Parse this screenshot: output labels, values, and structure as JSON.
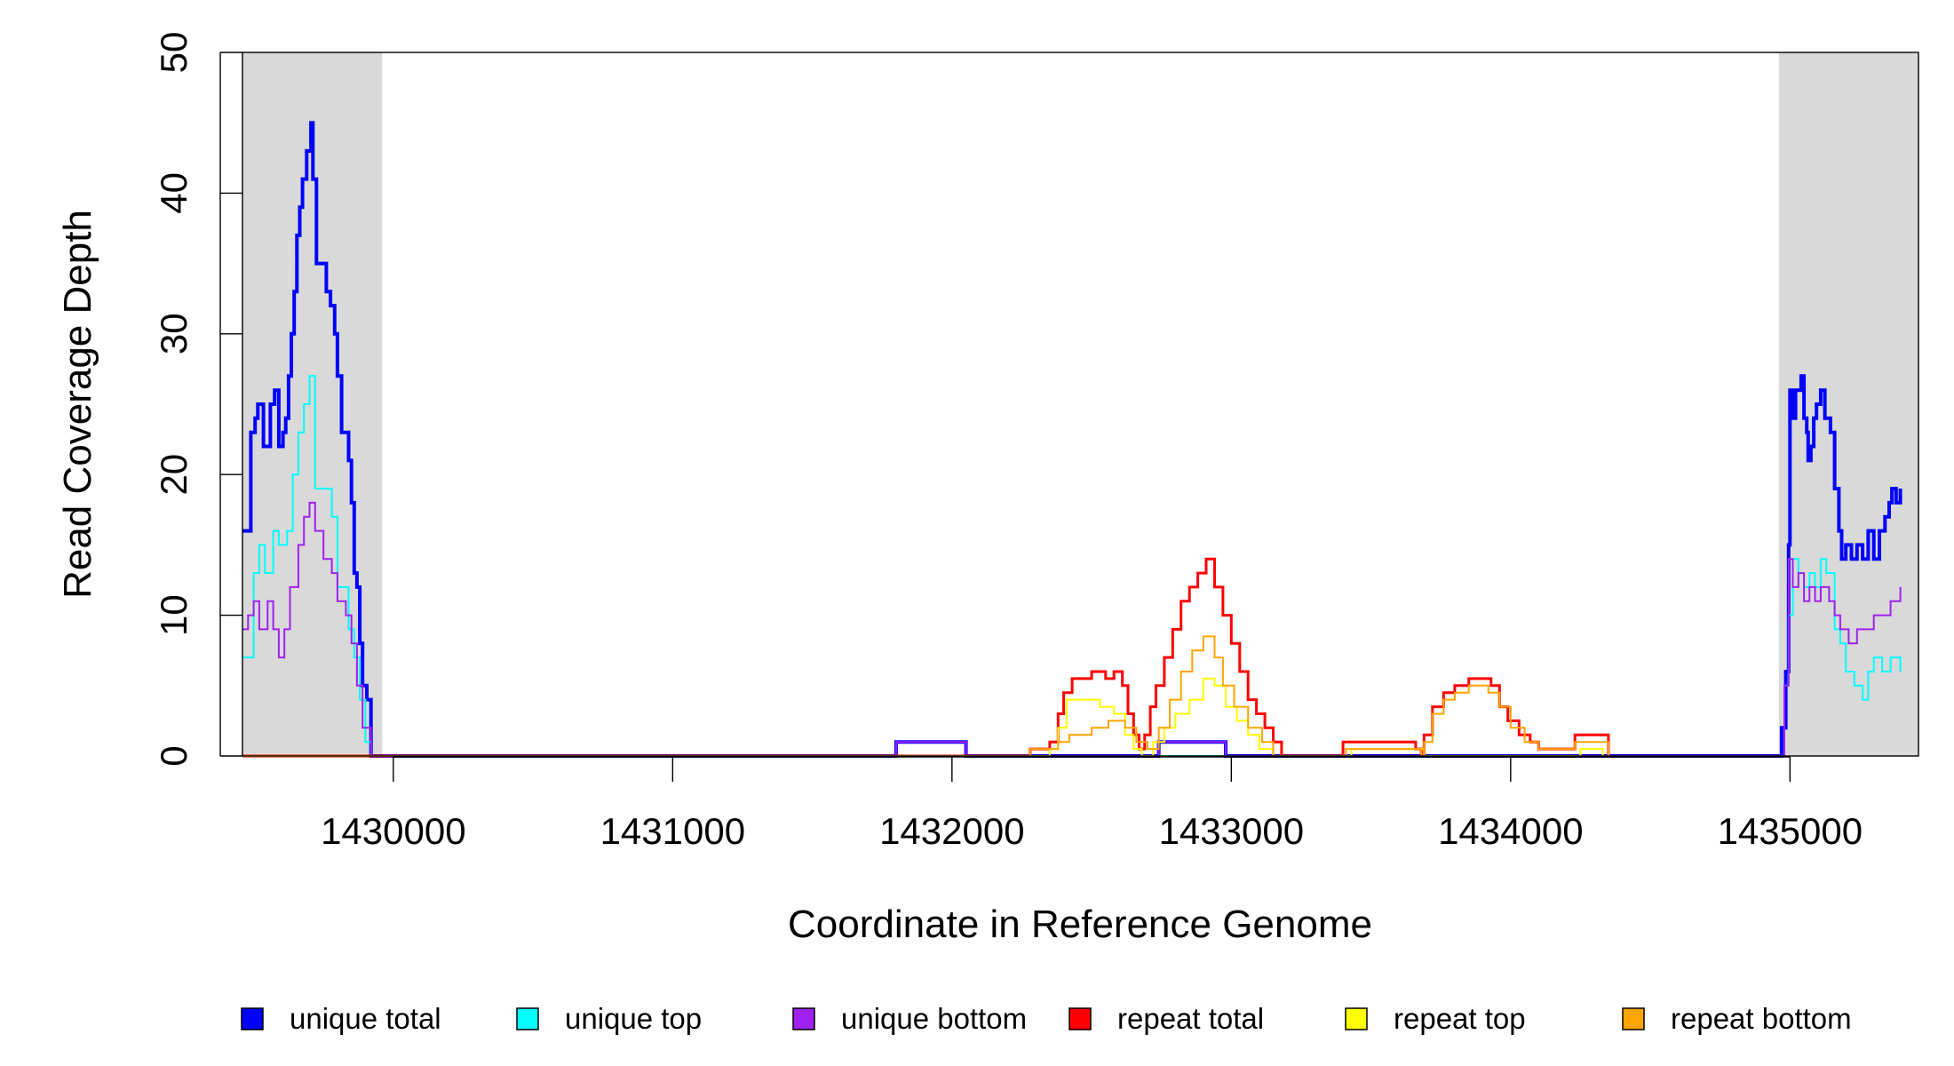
{
  "chart_data": {
    "type": "line",
    "xlabel": "Coordinate in Reference Genome",
    "ylabel": "Read Coverage Depth",
    "xlim": [
      1429460,
      1435460
    ],
    "ylim": [
      0,
      50
    ],
    "x_ticks": [
      1430000,
      1431000,
      1432000,
      1433000,
      1434000,
      1435000
    ],
    "y_ticks": [
      0,
      10,
      20,
      30,
      40,
      50
    ],
    "shaded_regions": [
      [
        1429460,
        1429960
      ],
      [
        1434960,
        1435460
      ]
    ],
    "shade_color": "#d9d9d9",
    "series": [
      {
        "name": "unique total",
        "color": "#0000ff",
        "width": 4,
        "points": [
          [
            1429460,
            16
          ],
          [
            1429490,
            23
          ],
          [
            1429505,
            24
          ],
          [
            1429515,
            25
          ],
          [
            1429535,
            22
          ],
          [
            1429560,
            25
          ],
          [
            1429575,
            26
          ],
          [
            1429590,
            22
          ],
          [
            1429605,
            23
          ],
          [
            1429615,
            24
          ],
          [
            1429625,
            27
          ],
          [
            1429635,
            30
          ],
          [
            1429645,
            33
          ],
          [
            1429655,
            37
          ],
          [
            1429665,
            39
          ],
          [
            1429675,
            41
          ],
          [
            1429690,
            43
          ],
          [
            1429705,
            45
          ],
          [
            1429712,
            41
          ],
          [
            1429725,
            35
          ],
          [
            1429745,
            35
          ],
          [
            1429760,
            33
          ],
          [
            1429775,
            32
          ],
          [
            1429790,
            30
          ],
          [
            1429800,
            27
          ],
          [
            1429815,
            23
          ],
          [
            1429840,
            21
          ],
          [
            1429850,
            18
          ],
          [
            1429860,
            13
          ],
          [
            1429870,
            12
          ],
          [
            1429880,
            8
          ],
          [
            1429890,
            5
          ],
          [
            1429905,
            4
          ],
          [
            1429920,
            0
          ],
          [
            1429960,
            0
          ],
          [
            1431800,
            0
          ],
          [
            1431800,
            1
          ],
          [
            1432050,
            1
          ],
          [
            1432050,
            0
          ],
          [
            1432740,
            0
          ],
          [
            1432740,
            1
          ],
          [
            1432980,
            1
          ],
          [
            1432980,
            0
          ],
          [
            1434960,
            0
          ],
          [
            1434970,
            2
          ],
          [
            1434985,
            6
          ],
          [
            1434995,
            15
          ],
          [
            1435000,
            26
          ],
          [
            1435010,
            24
          ],
          [
            1435020,
            26
          ],
          [
            1435040,
            27
          ],
          [
            1435050,
            24
          ],
          [
            1435060,
            23
          ],
          [
            1435065,
            21
          ],
          [
            1435075,
            22
          ],
          [
            1435085,
            24
          ],
          [
            1435095,
            25
          ],
          [
            1435110,
            26
          ],
          [
            1435125,
            24
          ],
          [
            1435145,
            23
          ],
          [
            1435160,
            19
          ],
          [
            1435175,
            16
          ],
          [
            1435185,
            14
          ],
          [
            1435200,
            15
          ],
          [
            1435220,
            14
          ],
          [
            1435240,
            15
          ],
          [
            1435260,
            14
          ],
          [
            1435280,
            16
          ],
          [
            1435300,
            14
          ],
          [
            1435320,
            16
          ],
          [
            1435340,
            17
          ],
          [
            1435355,
            18
          ],
          [
            1435365,
            19
          ],
          [
            1435380,
            18
          ],
          [
            1435395,
            19
          ]
        ]
      },
      {
        "name": "unique top",
        "color": "#00ffff",
        "width": 2,
        "points": [
          [
            1429460,
            7
          ],
          [
            1429500,
            13
          ],
          [
            1429520,
            15
          ],
          [
            1429540,
            13
          ],
          [
            1429570,
            16
          ],
          [
            1429590,
            15
          ],
          [
            1429620,
            16
          ],
          [
            1429640,
            20
          ],
          [
            1429660,
            23
          ],
          [
            1429680,
            25
          ],
          [
            1429700,
            27
          ],
          [
            1429720,
            19
          ],
          [
            1429780,
            17
          ],
          [
            1429800,
            12
          ],
          [
            1429840,
            9
          ],
          [
            1429860,
            7
          ],
          [
            1429880,
            4
          ],
          [
            1429900,
            1
          ],
          [
            1429920,
            0
          ],
          [
            1434960,
            0
          ],
          [
            1434980,
            5
          ],
          [
            1434995,
            10
          ],
          [
            1435010,
            14
          ],
          [
            1435030,
            13
          ],
          [
            1435050,
            12
          ],
          [
            1435070,
            13
          ],
          [
            1435090,
            12
          ],
          [
            1435110,
            14
          ],
          [
            1435130,
            13
          ],
          [
            1435160,
            9
          ],
          [
            1435180,
            8
          ],
          [
            1435200,
            6
          ],
          [
            1435230,
            5
          ],
          [
            1435260,
            4
          ],
          [
            1435280,
            6
          ],
          [
            1435300,
            7
          ],
          [
            1435330,
            6
          ],
          [
            1435360,
            7
          ],
          [
            1435395,
            6
          ]
        ]
      },
      {
        "name": "unique bottom",
        "color": "#a020f0",
        "width": 2,
        "points": [
          [
            1429460,
            9
          ],
          [
            1429480,
            10
          ],
          [
            1429500,
            11
          ],
          [
            1429520,
            9
          ],
          [
            1429550,
            11
          ],
          [
            1429570,
            9
          ],
          [
            1429590,
            7
          ],
          [
            1429610,
            9
          ],
          [
            1429630,
            12
          ],
          [
            1429660,
            15
          ],
          [
            1429680,
            17
          ],
          [
            1429700,
            18
          ],
          [
            1429720,
            16
          ],
          [
            1429750,
            14
          ],
          [
            1429780,
            13
          ],
          [
            1429800,
            11
          ],
          [
            1429830,
            10
          ],
          [
            1429850,
            8
          ],
          [
            1429870,
            5
          ],
          [
            1429890,
            2
          ],
          [
            1429920,
            0
          ],
          [
            1431800,
            0
          ],
          [
            1431800,
            1
          ],
          [
            1432050,
            1
          ],
          [
            1432050,
            0
          ],
          [
            1432740,
            0
          ],
          [
            1432740,
            1
          ],
          [
            1432980,
            1
          ],
          [
            1432980,
            0
          ],
          [
            1434960,
            0
          ],
          [
            1434980,
            5
          ],
          [
            1434995,
            14
          ],
          [
            1435010,
            12
          ],
          [
            1435030,
            13
          ],
          [
            1435050,
            11
          ],
          [
            1435070,
            12
          ],
          [
            1435090,
            11
          ],
          [
            1435110,
            12
          ],
          [
            1435140,
            11
          ],
          [
            1435160,
            10
          ],
          [
            1435180,
            9
          ],
          [
            1435210,
            8
          ],
          [
            1435240,
            9
          ],
          [
            1435270,
            9
          ],
          [
            1435300,
            10
          ],
          [
            1435330,
            10
          ],
          [
            1435360,
            11
          ],
          [
            1435395,
            12
          ]
        ]
      },
      {
        "name": "repeat total",
        "color": "#ff0000",
        "width": 3,
        "points": [
          [
            1429460,
            0
          ],
          [
            1432280,
            0
          ],
          [
            1432280,
            0.5
          ],
          [
            1432350,
            1
          ],
          [
            1432380,
            3
          ],
          [
            1432400,
            4.5
          ],
          [
            1432430,
            5.5
          ],
          [
            1432500,
            6
          ],
          [
            1432550,
            5.5
          ],
          [
            1432580,
            6
          ],
          [
            1432610,
            5
          ],
          [
            1432630,
            3
          ],
          [
            1432650,
            1.5
          ],
          [
            1432670,
            0.5
          ],
          [
            1432690,
            1.5
          ],
          [
            1432710,
            3.5
          ],
          [
            1432730,
            5
          ],
          [
            1432760,
            7
          ],
          [
            1432790,
            9
          ],
          [
            1432820,
            11
          ],
          [
            1432850,
            12
          ],
          [
            1432880,
            13
          ],
          [
            1432910,
            14
          ],
          [
            1432940,
            12
          ],
          [
            1432970,
            10
          ],
          [
            1433000,
            8
          ],
          [
            1433030,
            6
          ],
          [
            1433060,
            4
          ],
          [
            1433090,
            3
          ],
          [
            1433120,
            2
          ],
          [
            1433150,
            1
          ],
          [
            1433180,
            0
          ],
          [
            1433400,
            0
          ],
          [
            1433400,
            1
          ],
          [
            1433660,
            0.5
          ],
          [
            1433680,
            0
          ],
          [
            1433690,
            1.5
          ],
          [
            1433720,
            3.5
          ],
          [
            1433760,
            4.5
          ],
          [
            1433800,
            5
          ],
          [
            1433850,
            5.5
          ],
          [
            1433930,
            5
          ],
          [
            1433960,
            3.5
          ],
          [
            1433990,
            2.5
          ],
          [
            1434030,
            1.5
          ],
          [
            1434070,
            1
          ],
          [
            1434100,
            0.5
          ],
          [
            1434230,
            1.5
          ],
          [
            1434350,
            1.5
          ],
          [
            1434350,
            0
          ]
        ]
      },
      {
        "name": "repeat top",
        "color": "#ffff00",
        "width": 2,
        "points": [
          [
            1429460,
            0
          ],
          [
            1432300,
            0
          ],
          [
            1432350,
            0.5
          ],
          [
            1432380,
            2
          ],
          [
            1432410,
            4
          ],
          [
            1432530,
            3.5
          ],
          [
            1432580,
            3
          ],
          [
            1432620,
            1.5
          ],
          [
            1432650,
            0.5
          ],
          [
            1432680,
            0
          ],
          [
            1432720,
            1
          ],
          [
            1432760,
            2
          ],
          [
            1432800,
            3
          ],
          [
            1432850,
            4
          ],
          [
            1432900,
            5.5
          ],
          [
            1432940,
            5
          ],
          [
            1432980,
            3.5
          ],
          [
            1433020,
            2.5
          ],
          [
            1433060,
            1.5
          ],
          [
            1433100,
            0.5
          ],
          [
            1433150,
            0
          ],
          [
            1433410,
            0
          ],
          [
            1433430,
            0.5
          ],
          [
            1433660,
            0.5
          ],
          [
            1433690,
            0
          ],
          [
            1434060,
            0
          ],
          [
            1434250,
            0.5
          ],
          [
            1434330,
            0
          ]
        ]
      },
      {
        "name": "repeat bottom",
        "color": "#ffa500",
        "width": 2,
        "points": [
          [
            1429460,
            0
          ],
          [
            1432280,
            0
          ],
          [
            1432280,
            0.5
          ],
          [
            1432340,
            0.5
          ],
          [
            1432380,
            1
          ],
          [
            1432420,
            1.5
          ],
          [
            1432500,
            2
          ],
          [
            1432560,
            2.5
          ],
          [
            1432620,
            2
          ],
          [
            1432660,
            1
          ],
          [
            1432700,
            0.5
          ],
          [
            1432740,
            2
          ],
          [
            1432780,
            4
          ],
          [
            1432820,
            6
          ],
          [
            1432860,
            7.5
          ],
          [
            1432900,
            8.5
          ],
          [
            1432940,
            7
          ],
          [
            1432970,
            5
          ],
          [
            1433010,
            3.5
          ],
          [
            1433060,
            2
          ],
          [
            1433110,
            1
          ],
          [
            1433150,
            0
          ],
          [
            1433410,
            0
          ],
          [
            1433410,
            0.5
          ],
          [
            1433670,
            0.5
          ],
          [
            1433680,
            0
          ],
          [
            1433690,
            1
          ],
          [
            1433720,
            3
          ],
          [
            1433760,
            4
          ],
          [
            1433800,
            4.5
          ],
          [
            1433850,
            5
          ],
          [
            1433920,
            4.5
          ],
          [
            1433960,
            3.5
          ],
          [
            1434000,
            2
          ],
          [
            1434050,
            1
          ],
          [
            1434100,
            0.5
          ],
          [
            1434230,
            1
          ],
          [
            1434340,
            1
          ],
          [
            1434350,
            0
          ]
        ]
      }
    ]
  }
}
